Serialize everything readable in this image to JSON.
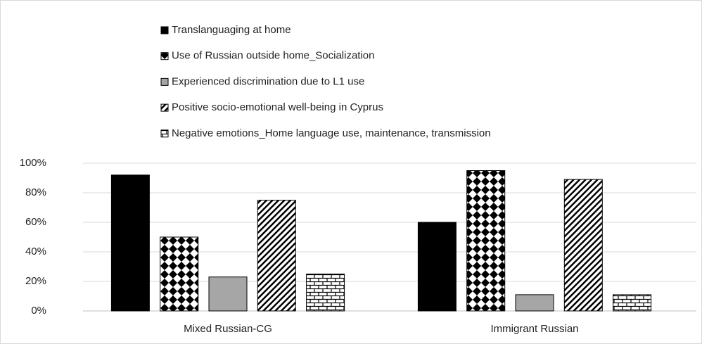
{
  "chart_data": {
    "type": "bar",
    "categories": [
      "Mixed Russian-CG",
      "Immigrant Russian"
    ],
    "series": [
      {
        "name": "Translanguaging at home",
        "color": "#000000",
        "values": [
          92,
          60
        ]
      },
      {
        "name": "Use of Russian outside home_Socialization",
        "color": "#000000",
        "values": [
          50,
          95
        ]
      },
      {
        "name": "Experienced discrimination due to L1 use",
        "color": "#a6a6a6",
        "values": [
          23,
          11
        ]
      },
      {
        "name": "Positive socio-emotional well-being in Cyprus",
        "color": "#000000",
        "values": [
          75,
          89
        ]
      },
      {
        "name": "Negative emotions_Home language use, maintenance, transmission",
        "color": "#000000",
        "values": [
          25,
          11
        ]
      }
    ],
    "ylim": [
      0,
      100
    ],
    "yticks": [
      {
        "value": 0,
        "label": "0%"
      },
      {
        "value": 20,
        "label": "20%"
      },
      {
        "value": 40,
        "label": "40%"
      },
      {
        "value": 60,
        "label": "60%"
      },
      {
        "value": 80,
        "label": "80%"
      },
      {
        "value": 100,
        "label": "100%"
      }
    ],
    "grid": true,
    "legend": "top"
  }
}
